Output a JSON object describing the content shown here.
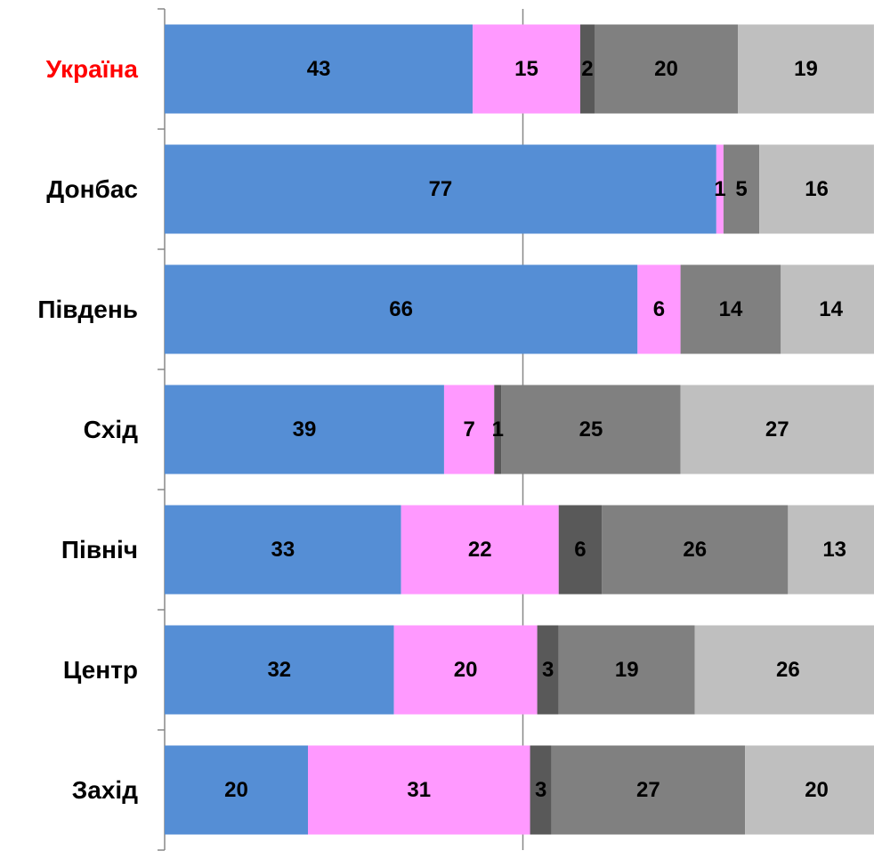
{
  "chart_data": {
    "type": "stacked-bar-horizontal",
    "categories": [
      "Україна",
      "Донбас",
      "Південь",
      "Схід",
      "Північ",
      "Центр",
      "Захід"
    ],
    "series": [
      {
        "color": "#558ed5",
        "values": [
          43,
          77,
          66,
          39,
          33,
          32,
          20
        ]
      },
      {
        "color": "#ff99ff",
        "values": [
          15,
          1,
          6,
          7,
          22,
          20,
          31
        ]
      },
      {
        "color": "#595959",
        "values": [
          2,
          null,
          null,
          1,
          6,
          3,
          3
        ]
      },
      {
        "color": "#808080",
        "values": [
          20,
          5,
          14,
          25,
          26,
          19,
          27
        ]
      },
      {
        "color": "#bfbfbf",
        "values": [
          19,
          16,
          14,
          27,
          13,
          26,
          20
        ]
      }
    ],
    "xlim": [
      0,
      100
    ],
    "xticks": [
      0,
      50,
      100
    ],
    "grid": true
  }
}
